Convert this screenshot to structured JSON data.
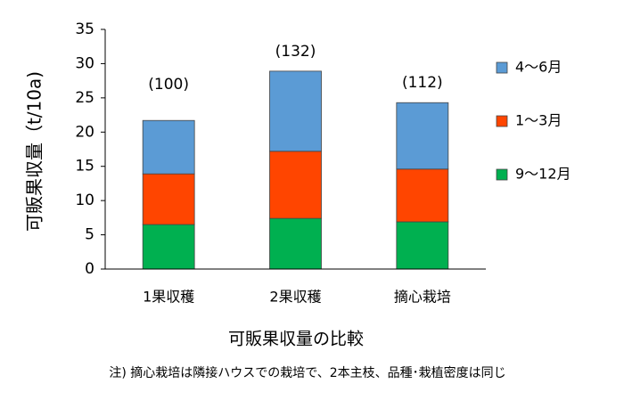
{
  "chart_data": {
    "type": "stacked_bar",
    "y_label": "可販果収量（t/10a)",
    "x_label": "可販果収量の比較",
    "note": "注) 摘心栽培は隣接ハウスでの栽培で、2本主枝、品種･栽植密度は同じ",
    "categories": [
      "1果収穫",
      "2果収穫",
      "摘心栽培"
    ],
    "annotations": [
      "(100)",
      "(132)",
      "(112)"
    ],
    "series": [
      {
        "name": "9～12月",
        "color": "#00b050",
        "values": [
          6.5,
          7.4,
          6.9
        ]
      },
      {
        "name": "1～3月",
        "color": "#ff4500",
        "values": [
          7.4,
          9.8,
          7.7
        ]
      },
      {
        "name": "4～6月",
        "color": "#5b9bd5",
        "values": [
          7.8,
          11.7,
          9.7
        ]
      }
    ],
    "ylim": [
      0,
      35
    ],
    "yticks": [
      0,
      5,
      10,
      15,
      20,
      25,
      30,
      35
    ],
    "legend": "right"
  }
}
